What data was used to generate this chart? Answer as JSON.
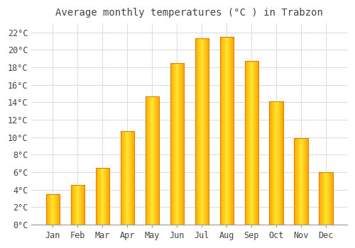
{
  "title": "Average monthly temperatures (°C ) in Trabzon",
  "months": [
    "Jan",
    "Feb",
    "Mar",
    "Apr",
    "May",
    "Jun",
    "Jul",
    "Aug",
    "Sep",
    "Oct",
    "Nov",
    "Dec"
  ],
  "values": [
    3.5,
    4.5,
    6.5,
    10.7,
    14.7,
    18.5,
    21.3,
    21.5,
    18.7,
    14.1,
    9.9,
    6.0
  ],
  "bar_color": "#FFA800",
  "bar_highlight": "#FFD060",
  "bar_edge_color": "#E08000",
  "background_color": "#FFFFFF",
  "plot_bg_color": "#FFFFFF",
  "grid_color": "#DDDDDD",
  "text_color": "#444444",
  "ylim": [
    0,
    23
  ],
  "ytick_step": 2,
  "title_fontsize": 10,
  "tick_fontsize": 8.5
}
